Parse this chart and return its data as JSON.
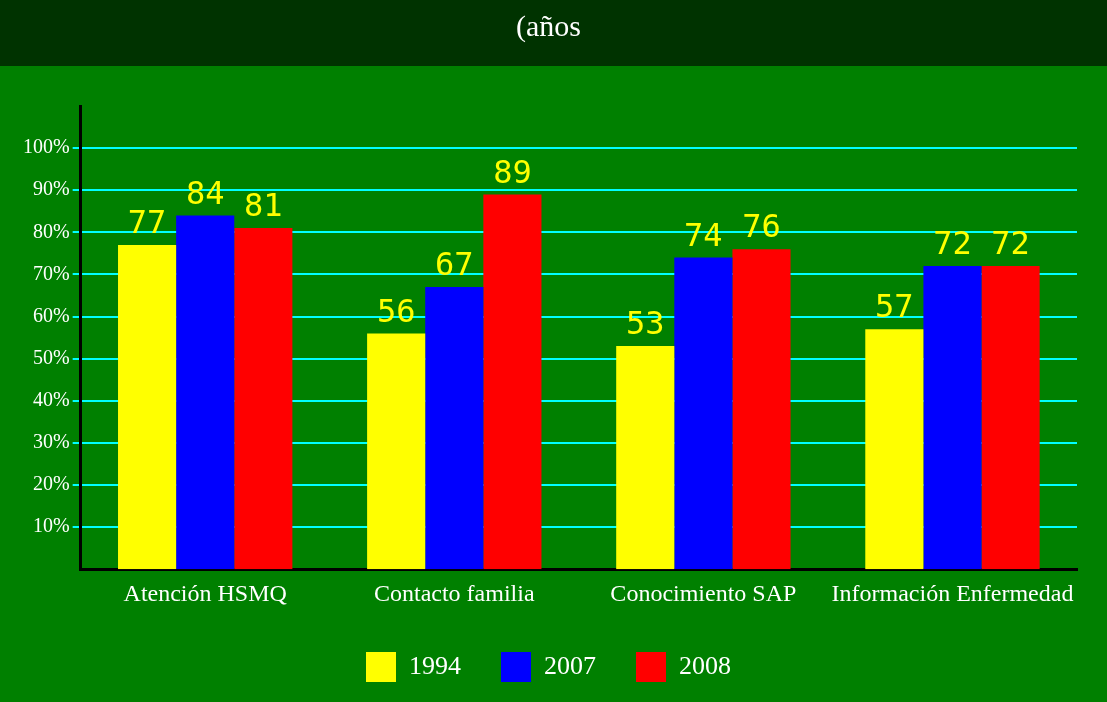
{
  "chart_data": {
    "type": "bar",
    "title": "(años",
    "categories": [
      "Atención HSMQ",
      "Contacto familia",
      "Conocimiento SAP",
      "Información Enfermedad"
    ],
    "series": [
      {
        "name": "1994",
        "color": "#ffff00",
        "values": [
          77,
          56,
          53,
          57
        ]
      },
      {
        "name": "2007",
        "color": "#0000ff",
        "values": [
          84,
          67,
          74,
          72
        ]
      },
      {
        "name": "2008",
        "color": "#ff0000",
        "values": [
          81,
          89,
          76,
          72
        ]
      }
    ],
    "ylim": [
      0,
      110
    ],
    "yticks": [
      {
        "value": 10,
        "label": "10%"
      },
      {
        "value": 20,
        "label": "20%"
      },
      {
        "value": 30,
        "label": "30%"
      },
      {
        "value": 40,
        "label": "40%"
      },
      {
        "value": 50,
        "label": "50%"
      },
      {
        "value": 60,
        "label": "60%"
      },
      {
        "value": 70,
        "label": "70%"
      },
      {
        "value": 80,
        "label": "80%"
      },
      {
        "value": 90,
        "label": "90%"
      },
      {
        "value": 100,
        "label": "100%"
      }
    ],
    "grid": "y",
    "legend": "bottom",
    "data_labels": true
  }
}
